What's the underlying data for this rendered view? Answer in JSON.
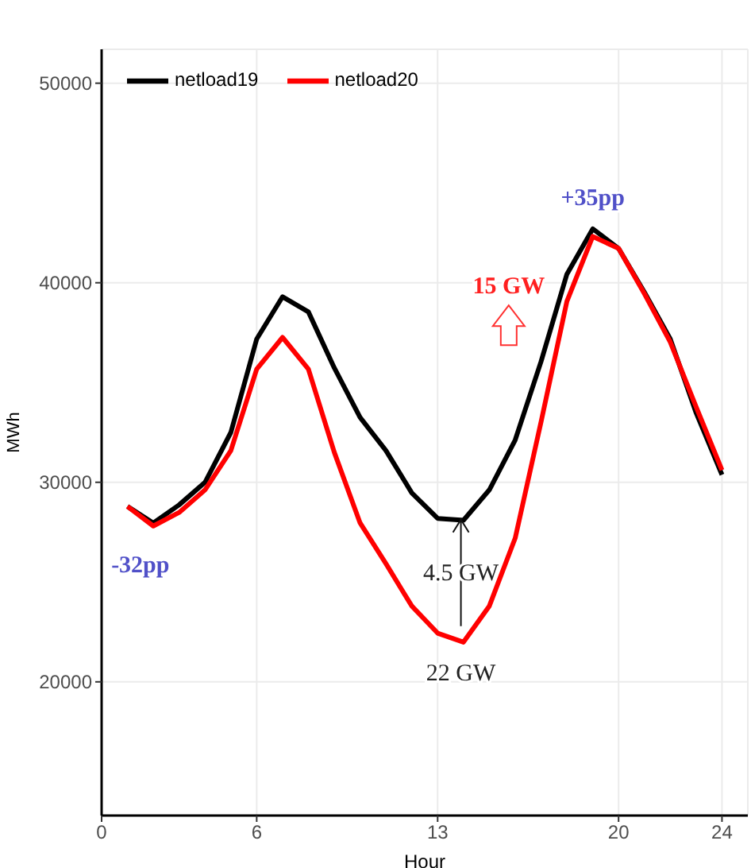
{
  "chart_data": {
    "type": "line",
    "xlabel": "Hour",
    "ylabel": "MWh",
    "x": [
      1,
      2,
      3,
      4,
      5,
      6,
      7,
      8,
      9,
      10,
      11,
      12,
      13,
      14,
      15,
      16,
      17,
      18,
      19,
      20,
      21,
      22,
      23,
      24
    ],
    "series": [
      {
        "name": "netload19",
        "color": "#000000",
        "values": [
          28790,
          27960,
          28870,
          30000,
          32500,
          37180,
          39300,
          38540,
          35740,
          33250,
          31590,
          29470,
          28190,
          28100,
          29620,
          32120,
          36050,
          40430,
          42700,
          41720,
          39520,
          37180,
          33480,
          30380
        ]
      },
      {
        "name": "netload20",
        "color": "#ff0000",
        "values": [
          28790,
          27810,
          28490,
          29620,
          31590,
          35670,
          37260,
          35670,
          31510,
          27960,
          25920,
          23800,
          22440,
          21990,
          23800,
          27200,
          33020,
          39070,
          42320,
          41720,
          39450,
          37030,
          33780,
          30610
        ]
      }
    ],
    "xlim": [
      0,
      25
    ],
    "xticks": [
      0,
      6,
      13,
      20,
      24
    ],
    "ylim": [
      13300,
      51700
    ],
    "yticks": [
      20000,
      30000,
      40000,
      50000
    ],
    "grid": true,
    "legend": "top left",
    "marker": "none",
    "line_style": "solid",
    "annotations": [
      "-32pp",
      "+35pp",
      "15 GW",
      "4.5 GW",
      "22 GW"
    ]
  }
}
